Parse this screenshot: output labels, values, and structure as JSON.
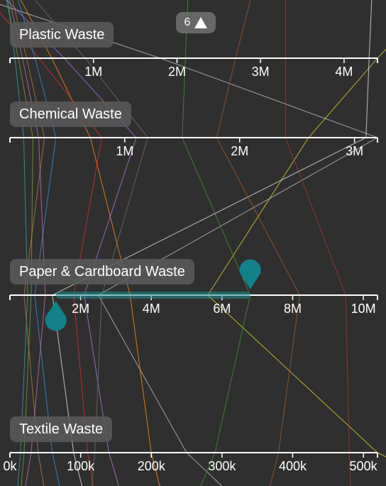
{
  "badge": {
    "count": "6",
    "icon": "triangle-up-icon"
  },
  "colors": {
    "background": "#2f2f2f",
    "axis": "#ffffff",
    "brush": "#1f8f94",
    "handle": "#148088"
  },
  "chart_data": {
    "type": "parallel-coordinates",
    "axes": [
      {
        "key": "plastic",
        "label": "Plastic Waste",
        "range": [
          0,
          4400000
        ],
        "ticks": [
          1000000,
          2000000,
          3000000,
          4000000
        ],
        "tick_labels": [
          "1M",
          "2M",
          "3M",
          "4M"
        ]
      },
      {
        "key": "chemical",
        "label": "Chemical Waste",
        "range": [
          0,
          3200000
        ],
        "ticks": [
          1000000,
          2000000,
          3000000
        ],
        "tick_labels": [
          "1M",
          "2M",
          "3M"
        ]
      },
      {
        "key": "paper",
        "label": "Paper & Cardboard Waste",
        "range": [
          0,
          10400000
        ],
        "ticks": [
          2000000,
          4000000,
          6000000,
          8000000,
          10000000
        ],
        "tick_labels": [
          "2M",
          "4M",
          "6M",
          "8M",
          "10M"
        ]
      },
      {
        "key": "textile",
        "label": "Textile Waste",
        "range": [
          0,
          520000
        ],
        "ticks": [
          0,
          100000,
          200000,
          300000,
          400000,
          500000
        ],
        "tick_labels": [
          "0k",
          "100k",
          "200k",
          "300k",
          "400k",
          "500k"
        ]
      }
    ],
    "brush": {
      "axis": "paper",
      "range": [
        1300000,
        6800000
      ]
    },
    "series": [
      {
        "color": "#d8d23a",
        "values": [
          4400000,
          2600000,
          5600000,
          520000
        ]
      },
      {
        "color": "#bdbdbd",
        "values": [
          1800000,
          3200000,
          2500000,
          250000
        ]
      },
      {
        "color": "#ff8c1a",
        "values": [
          500000,
          700000,
          3400000,
          200000
        ]
      },
      {
        "color": "#a77bd6",
        "values": [
          650000,
          1100000,
          2100000,
          140000
        ]
      },
      {
        "color": "#d2342f",
        "values": [
          350000,
          800000,
          1800000,
          110000
        ]
      },
      {
        "color": "#4a8f3c",
        "values": [
          2100000,
          1500000,
          6800000,
          290000
        ]
      },
      {
        "color": "#9c3b3b",
        "values": [
          3300000,
          2400000,
          9500000,
          480000
        ]
      },
      {
        "color": "#e0e0e0",
        "values": [
          4300000,
          3100000,
          1200000,
          90000
        ]
      },
      {
        "color": "#3b8ed6",
        "values": [
          300000,
          400000,
          700000,
          60000
        ]
      },
      {
        "color": "#b07a4a",
        "values": [
          200000,
          300000,
          400000,
          40000
        ]
      },
      {
        "color": "#6f6f6f",
        "values": [
          900000,
          1200000,
          2600000,
          120000
        ]
      },
      {
        "color": "#c36fa5",
        "values": [
          150000,
          250000,
          1000000,
          30000
        ]
      },
      {
        "color": "#7f9a3c",
        "values": [
          100000,
          200000,
          600000,
          20000
        ]
      },
      {
        "color": "#3aa0a0",
        "values": [
          60000,
          120000,
          500000,
          15000
        ]
      },
      {
        "color": "#a05a2c",
        "values": [
          2700000,
          1800000,
          8200000,
          380000
        ]
      }
    ]
  }
}
